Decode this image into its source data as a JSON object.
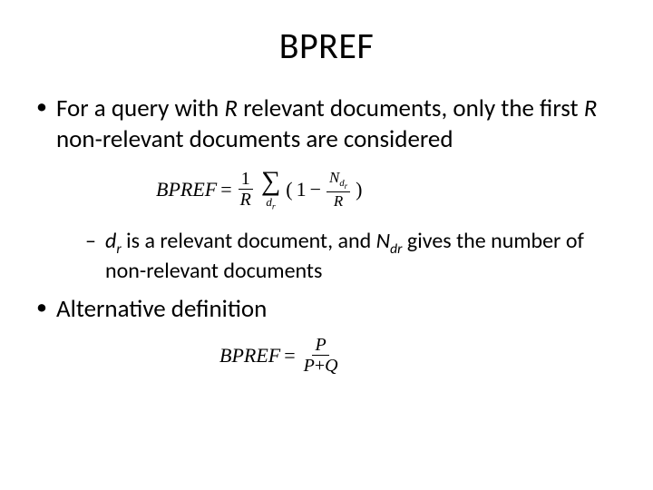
{
  "title": "BPREF",
  "bullets": {
    "b1": {
      "pre": "For a query with ",
      "R1": "R",
      "mid1": " relevant documents, only the first ",
      "R2": "R",
      "post": " non-relevant documents are considered"
    },
    "sub1": {
      "dr_d": "d",
      "dr_r": "r",
      "mid1": " is a relevant document, and ",
      "N": "N",
      "dr2": "dr",
      "post": " gives the number of non-relevant documents"
    },
    "b2": "Alternative definition"
  },
  "formula1": {
    "lhs": "BPREF",
    "eq": " = ",
    "frac1_num": "1",
    "frac1_den": "R",
    "sigma_below_d": "d",
    "sigma_below_r": "r",
    "open": "(",
    "one": "1",
    "minus": " − ",
    "frac2_num_N": "N",
    "frac2_num_d": "d",
    "frac2_num_r": "r",
    "frac2_den": "R",
    "close": ")"
  },
  "formula2": {
    "lhs": "BPREF",
    "eq": " = ",
    "num": "P",
    "den_P": "P",
    "den_plus": "+",
    "den_Q": "Q"
  },
  "colors": {
    "background": "#ffffff",
    "text": "#000000"
  },
  "fonts": {
    "body": "Calibri",
    "math": "Cambria Math / Times New Roman"
  }
}
